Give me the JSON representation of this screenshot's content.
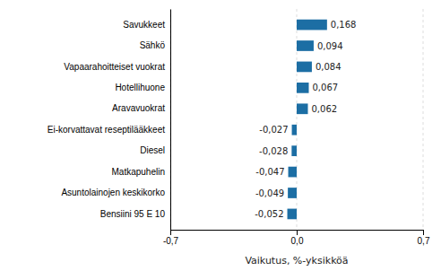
{
  "chart_data": {
    "type": "bar",
    "orientation": "horizontal",
    "categories": [
      "Bensiini 95 E 10",
      "Asuntolainojen keskikorko",
      "Matkapuhelin",
      "Diesel",
      "Ei-korvattavat reseptilääkkeet",
      "Aravavuokrat",
      "Hotellihuone",
      "Vapaarahoitteiset vuokrat",
      "Sähkö",
      "Savukkeet"
    ],
    "values": [
      -0.052,
      -0.049,
      -0.047,
      -0.028,
      -0.027,
      0.062,
      0.067,
      0.084,
      0.094,
      0.168
    ],
    "value_labels": [
      "-0,052",
      "-0,049",
      "-0,047",
      "-0,028",
      "-0,027",
      "0,062",
      "0,067",
      "0,084",
      "0,094",
      "0,168"
    ],
    "data_labels": true,
    "color": "#1c6ea4",
    "xlabel": "Vaikutus, %-yksikköä",
    "xlim": [
      -0.7,
      0.7
    ],
    "xticks": [
      {
        "value": -0.7,
        "label": "-0,7"
      },
      {
        "value": 0.0,
        "label": "0,0"
      },
      {
        "value": 0.7,
        "label": "0,7"
      }
    ],
    "grid": true
  }
}
